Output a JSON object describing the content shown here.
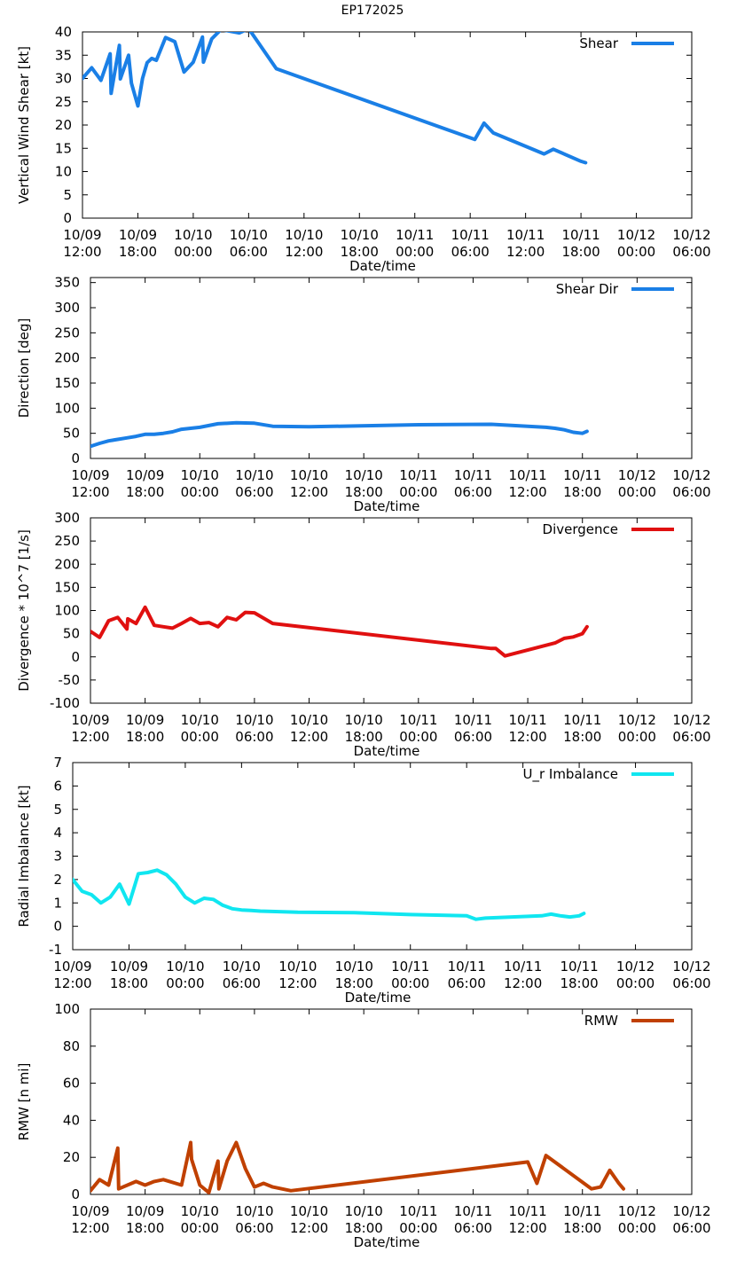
{
  "title": "EP172025",
  "chart_data": [
    {
      "type": "line",
      "ylabel": "Vertical Wind Shear [kt]",
      "xlabel": "Date/time",
      "ylim": [
        0,
        40
      ],
      "yticks": [
        "0",
        "5",
        "10",
        "15",
        "20",
        "25",
        "30",
        "35",
        "40"
      ],
      "xlim": [
        0,
        66
      ],
      "xticks": [
        {
          "date": "10/09",
          "time": "12:00"
        },
        {
          "date": "10/09",
          "time": "18:00"
        },
        {
          "date": "10/10",
          "time": "00:00"
        },
        {
          "date": "10/10",
          "time": "06:00"
        },
        {
          "date": "10/10",
          "time": "12:00"
        },
        {
          "date": "10/10",
          "time": "18:00"
        },
        {
          "date": "10/11",
          "time": "00:00"
        },
        {
          "date": "10/11",
          "time": "06:00"
        },
        {
          "date": "10/11",
          "time": "12:00"
        },
        {
          "date": "10/11",
          "time": "18:00"
        },
        {
          "date": "10/12",
          "time": "00:00"
        },
        {
          "date": "10/12",
          "time": "06:00"
        }
      ],
      "legend": "top-right",
      "series": [
        {
          "name": "Shear",
          "color": "#1a7fe6",
          "x": [
            0,
            1,
            2,
            3,
            3.1,
            4,
            4.1,
            5,
            5.3,
            6,
            6.5,
            7,
            7.5,
            8,
            9,
            10,
            11,
            11.1,
            12,
            13,
            13.1,
            14,
            15,
            17,
            18,
            21,
            42.5,
            43.5,
            44.5,
            50,
            51,
            54,
            54.5
          ],
          "y": [
            30,
            32.3,
            29.6,
            35.3,
            26.8,
            37.1,
            29.9,
            35,
            29,
            24.1,
            30,
            33.4,
            34.3,
            33.9,
            38.8,
            37.9,
            31.4,
            31.6,
            33.5,
            38.9,
            33.5,
            38.5,
            40.5,
            39.8,
            40.7,
            32.1,
            16.9,
            20.4,
            18.3,
            13.8,
            14.8,
            12.2,
            11.9
          ]
        }
      ]
    },
    {
      "type": "line",
      "ylabel": "Direction [deg]",
      "xlabel": "Date/time",
      "ylim": [
        0,
        360
      ],
      "yticks": [
        "0",
        "50",
        "100",
        "150",
        "200",
        "250",
        "300",
        "350"
      ],
      "xlim": [
        0,
        66
      ],
      "xticks": [
        {
          "date": "10/09",
          "time": "12:00"
        },
        {
          "date": "10/09",
          "time": "18:00"
        },
        {
          "date": "10/10",
          "time": "00:00"
        },
        {
          "date": "10/10",
          "time": "06:00"
        },
        {
          "date": "10/10",
          "time": "12:00"
        },
        {
          "date": "10/10",
          "time": "18:00"
        },
        {
          "date": "10/11",
          "time": "00:00"
        },
        {
          "date": "10/11",
          "time": "06:00"
        },
        {
          "date": "10/11",
          "time": "12:00"
        },
        {
          "date": "10/11",
          "time": "18:00"
        },
        {
          "date": "10/12",
          "time": "00:00"
        },
        {
          "date": "10/12",
          "time": "06:00"
        }
      ],
      "legend": "top-right",
      "series": [
        {
          "name": "Shear Dir",
          "color": "#1a7fe6",
          "x": [
            0,
            1,
            2,
            3,
            4,
            5,
            6,
            7,
            8,
            9,
            10,
            12,
            14,
            16,
            18,
            20,
            24,
            36,
            44,
            50,
            51,
            52,
            53,
            54,
            54.5
          ],
          "y": [
            24,
            30,
            35,
            38,
            41,
            44,
            48,
            48,
            50,
            53,
            58,
            62,
            69,
            71,
            70,
            64,
            63,
            67,
            68,
            62,
            60,
            57,
            52,
            50,
            54
          ]
        }
      ]
    },
    {
      "type": "line",
      "ylabel": "Divergence * 10^7 [1/s]",
      "xlabel": "Date/time",
      "ylim": [
        -100,
        300
      ],
      "yticks": [
        "-100",
        "-50",
        "0",
        "50",
        "100",
        "150",
        "200",
        "250",
        "300"
      ],
      "xlim": [
        0,
        66
      ],
      "xticks": [
        {
          "date": "10/09",
          "time": "12:00"
        },
        {
          "date": "10/09",
          "time": "18:00"
        },
        {
          "date": "10/10",
          "time": "00:00"
        },
        {
          "date": "10/10",
          "time": "06:00"
        },
        {
          "date": "10/10",
          "time": "12:00"
        },
        {
          "date": "10/10",
          "time": "18:00"
        },
        {
          "date": "10/11",
          "time": "00:00"
        },
        {
          "date": "10/11",
          "time": "06:00"
        },
        {
          "date": "10/11",
          "time": "12:00"
        },
        {
          "date": "10/11",
          "time": "18:00"
        },
        {
          "date": "10/12",
          "time": "00:00"
        },
        {
          "date": "10/12",
          "time": "06:00"
        }
      ],
      "legend": "top-right",
      "series": [
        {
          "name": "Divergence",
          "color": "#e01010",
          "x": [
            0,
            1,
            2,
            3,
            4,
            4.1,
            5,
            6,
            7,
            8,
            9,
            10,
            11,
            12,
            13,
            14,
            15,
            16,
            17,
            18,
            20,
            44,
            44.5,
            45.5,
            51,
            52,
            53,
            54,
            54.5
          ],
          "y": [
            55,
            42,
            78,
            85,
            60,
            82,
            72,
            107,
            68,
            65,
            62,
            72,
            83,
            72,
            74,
            65,
            85,
            80,
            96,
            95,
            72,
            18,
            18,
            2,
            30,
            40,
            43,
            50,
            65
          ]
        }
      ]
    },
    {
      "type": "line",
      "ylabel": "Radial Imbalance [kt]",
      "xlabel": "Date/time",
      "ylim": [
        -1,
        7
      ],
      "yticks": [
        "-1",
        "0",
        "1",
        "2",
        "3",
        "4",
        "5",
        "6",
        "7"
      ],
      "xlim": [
        0,
        66
      ],
      "xticks": [
        {
          "date": "10/09",
          "time": "12:00"
        },
        {
          "date": "10/09",
          "time": "18:00"
        },
        {
          "date": "10/10",
          "time": "00:00"
        },
        {
          "date": "10/10",
          "time": "06:00"
        },
        {
          "date": "10/10",
          "time": "12:00"
        },
        {
          "date": "10/10",
          "time": "18:00"
        },
        {
          "date": "10/11",
          "time": "00:00"
        },
        {
          "date": "10/11",
          "time": "06:00"
        },
        {
          "date": "10/11",
          "time": "12:00"
        },
        {
          "date": "10/11",
          "time": "18:00"
        },
        {
          "date": "10/12",
          "time": "00:00"
        },
        {
          "date": "10/12",
          "time": "06:00"
        }
      ],
      "legend": "top-right",
      "series": [
        {
          "name": "U_r Imbalance",
          "color": "#10e6f0",
          "x": [
            0,
            1,
            2,
            3,
            4,
            5,
            6,
            7,
            8,
            9,
            10,
            11,
            12,
            13,
            14,
            15,
            16,
            17,
            18,
            19,
            20,
            24,
            30,
            36,
            42,
            43,
            44,
            50,
            51,
            52,
            53,
            54,
            54.5
          ],
          "y": [
            2,
            1.5,
            1.35,
            1.0,
            1.25,
            1.8,
            0.95,
            2.25,
            2.3,
            2.4,
            2.2,
            1.8,
            1.25,
            1.0,
            1.2,
            1.15,
            0.9,
            0.75,
            0.7,
            0.68,
            0.65,
            0.6,
            0.58,
            0.5,
            0.45,
            0.3,
            0.35,
            0.45,
            0.52,
            0.45,
            0.4,
            0.45,
            0.55
          ]
        }
      ]
    },
    {
      "type": "line",
      "ylabel": "RMW [n mi]",
      "xlabel": "Date/time",
      "ylim": [
        0,
        100
      ],
      "yticks": [
        "0",
        "20",
        "40",
        "60",
        "80",
        "100"
      ],
      "xlim": [
        0,
        66
      ],
      "xticks": [
        {
          "date": "10/09",
          "time": "12:00"
        },
        {
          "date": "10/09",
          "time": "18:00"
        },
        {
          "date": "10/10",
          "time": "00:00"
        },
        {
          "date": "10/10",
          "time": "06:00"
        },
        {
          "date": "10/10",
          "time": "12:00"
        },
        {
          "date": "10/10",
          "time": "18:00"
        },
        {
          "date": "10/11",
          "time": "00:00"
        },
        {
          "date": "10/11",
          "time": "06:00"
        },
        {
          "date": "10/11",
          "time": "12:00"
        },
        {
          "date": "10/11",
          "time": "18:00"
        },
        {
          "date": "10/12",
          "time": "00:00"
        },
        {
          "date": "10/12",
          "time": "06:00"
        }
      ],
      "legend": "top-right",
      "series": [
        {
          "name": "RMW",
          "color": "#c04000",
          "x": [
            0,
            1,
            2,
            3,
            3.1,
            5,
            6,
            7,
            8,
            10,
            11,
            11.1,
            12,
            13,
            14,
            14.1,
            15,
            16,
            17,
            18,
            19,
            20,
            22,
            48,
            49,
            50,
            55,
            56,
            57,
            58,
            58.5
          ],
          "y": [
            2,
            8,
            5,
            25,
            3,
            7,
            5,
            7,
            8,
            5,
            28,
            19,
            5,
            1,
            18,
            3,
            18,
            28,
            14,
            4,
            6,
            4,
            2,
            17.5,
            6,
            21,
            3,
            4,
            13,
            6,
            3
          ]
        }
      ]
    }
  ]
}
